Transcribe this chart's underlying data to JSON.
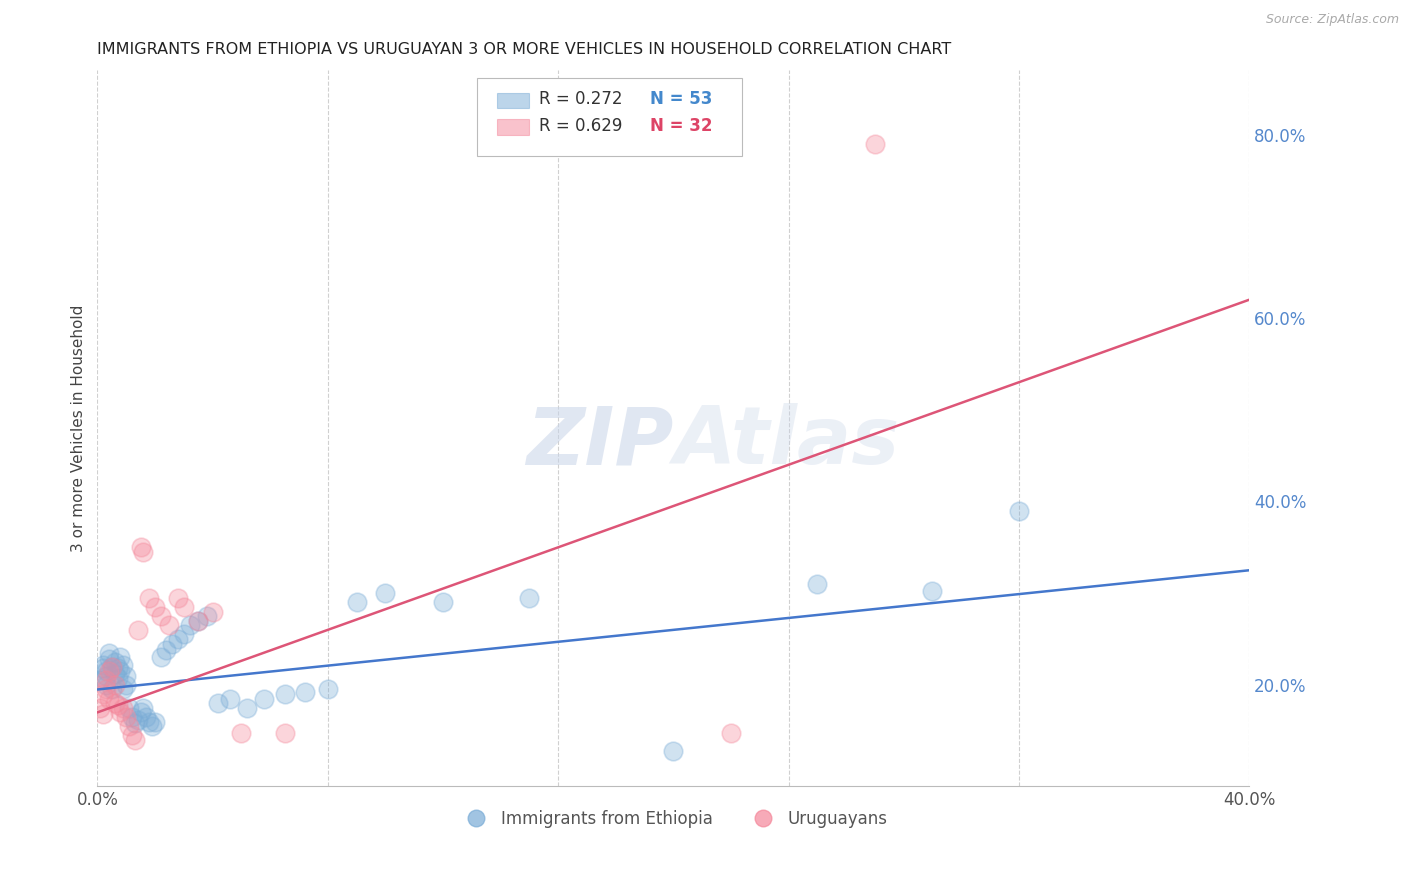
{
  "title": "IMMIGRANTS FROM ETHIOPIA VS URUGUAYAN 3 OR MORE VEHICLES IN HOUSEHOLD CORRELATION CHART",
  "source": "Source: ZipAtlas.com",
  "ylabel": "3 or more Vehicles in Household",
  "watermark": "ZIPAtlas",
  "xlim": [
    0.0,
    0.4
  ],
  "ylim": [
    0.09,
    0.87
  ],
  "xticks": [
    0.0,
    0.08,
    0.16,
    0.24,
    0.32,
    0.4
  ],
  "xtick_labels": [
    "0.0%",
    "",
    "",
    "",
    "",
    "40.0%"
  ],
  "ytick_right": [
    0.2,
    0.4,
    0.6,
    0.8
  ],
  "ytick_right_labels": [
    "20.0%",
    "40.0%",
    "60.0%",
    "80.0%"
  ],
  "legend_blue_r": "R = 0.272",
  "legend_blue_n": "N = 53",
  "legend_pink_r": "R = 0.629",
  "legend_pink_n": "N = 32",
  "legend_label_blue": "Immigrants from Ethiopia",
  "legend_label_pink": "Uruguayans",
  "blue_color": "#7aacd6",
  "pink_color": "#f4879a",
  "title_color": "#222222",
  "axis_label_color": "#444444",
  "right_tick_color": "#5588cc",
  "grid_color": "#d0d0d0",
  "blue_scatter_x": [
    0.001,
    0.002,
    0.002,
    0.003,
    0.003,
    0.003,
    0.004,
    0.004,
    0.005,
    0.005,
    0.006,
    0.006,
    0.007,
    0.007,
    0.008,
    0.008,
    0.009,
    0.009,
    0.01,
    0.01,
    0.011,
    0.012,
    0.013,
    0.014,
    0.015,
    0.016,
    0.017,
    0.018,
    0.019,
    0.02,
    0.022,
    0.024,
    0.026,
    0.028,
    0.03,
    0.032,
    0.035,
    0.038,
    0.042,
    0.046,
    0.052,
    0.058,
    0.065,
    0.072,
    0.08,
    0.09,
    0.1,
    0.12,
    0.15,
    0.2,
    0.25,
    0.29,
    0.32
  ],
  "blue_scatter_y": [
    0.205,
    0.218,
    0.222,
    0.215,
    0.21,
    0.2,
    0.228,
    0.235,
    0.22,
    0.195,
    0.212,
    0.225,
    0.218,
    0.208,
    0.23,
    0.215,
    0.222,
    0.195,
    0.2,
    0.21,
    0.175,
    0.165,
    0.158,
    0.162,
    0.17,
    0.175,
    0.165,
    0.16,
    0.155,
    0.16,
    0.23,
    0.238,
    0.245,
    0.25,
    0.255,
    0.265,
    0.27,
    0.275,
    0.18,
    0.185,
    0.175,
    0.185,
    0.19,
    0.192,
    0.195,
    0.29,
    0.3,
    0.29,
    0.295,
    0.128,
    0.31,
    0.302,
    0.39
  ],
  "pink_scatter_x": [
    0.001,
    0.002,
    0.002,
    0.003,
    0.003,
    0.004,
    0.004,
    0.005,
    0.006,
    0.006,
    0.007,
    0.008,
    0.009,
    0.01,
    0.011,
    0.012,
    0.013,
    0.014,
    0.015,
    0.016,
    0.018,
    0.02,
    0.022,
    0.025,
    0.028,
    0.03,
    0.035,
    0.04,
    0.05,
    0.065,
    0.22,
    0.27
  ],
  "pink_scatter_y": [
    0.175,
    0.168,
    0.19,
    0.205,
    0.195,
    0.185,
    0.215,
    0.22,
    0.2,
    0.18,
    0.178,
    0.17,
    0.175,
    0.165,
    0.155,
    0.145,
    0.14,
    0.26,
    0.35,
    0.345,
    0.295,
    0.285,
    0.275,
    0.265,
    0.295,
    0.285,
    0.27,
    0.28,
    0.148,
    0.148,
    0.148,
    0.79
  ],
  "blue_trend_x": [
    0.0,
    0.4
  ],
  "blue_trend_y": [
    0.195,
    0.325
  ],
  "pink_trend_x": [
    0.0,
    0.4
  ],
  "pink_trend_y": [
    0.17,
    0.62
  ]
}
